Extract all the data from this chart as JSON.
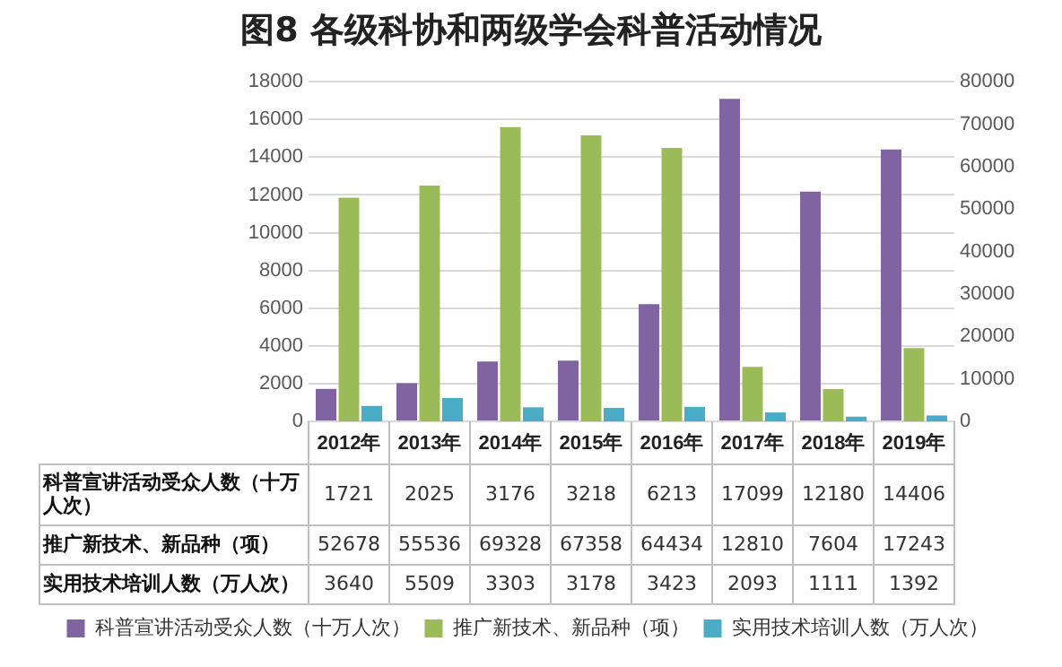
{
  "chart_data": {
    "type": "bar",
    "title": "图8 各级科协和两级学会科普活动情况",
    "categories": [
      "2012年",
      "2013年",
      "2014年",
      "2015年",
      "2016年",
      "2017年",
      "2018年",
      "2019年"
    ],
    "series": [
      {
        "name": "科普宣讲活动受众人数（十万人次）",
        "color": "#8064a2",
        "values": [
          1721,
          2025,
          3176,
          3218,
          6213,
          17099,
          12180,
          14406
        ]
      },
      {
        "name": "推广新技术、新品种（项）",
        "color": "#9bbb59",
        "axis": "y2",
        "values": [
          52678,
          55536,
          69328,
          67358,
          64434,
          12810,
          7604,
          17243
        ]
      },
      {
        "name": "实用技术培训人数（万人次）",
        "color": "#4bacc6",
        "axis": "y2",
        "values": [
          3640,
          5509,
          3303,
          3178,
          3423,
          2093,
          1111,
          1392
        ]
      }
    ],
    "ylim": [
      0,
      18000
    ],
    "yticks": [
      0,
      2000,
      4000,
      6000,
      8000,
      10000,
      12000,
      14000,
      16000,
      18000
    ],
    "y2lim": [
      0,
      80000
    ],
    "y2ticks": [
      0,
      10000,
      20000,
      30000,
      40000,
      50000,
      60000,
      70000,
      80000
    ],
    "grid": "y",
    "legend": "bottom",
    "data_labels": true
  }
}
